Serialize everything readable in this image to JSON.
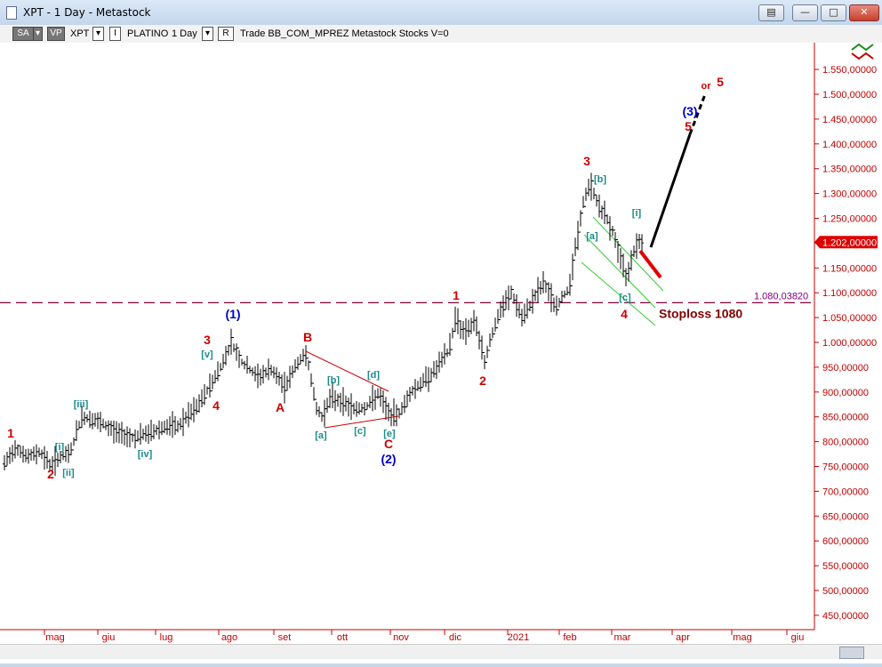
{
  "window": {
    "title": "XPT - 1 Day - Metastock"
  },
  "toolbar": {
    "sa": "SA",
    "vp": "VP",
    "symbol": "XPT",
    "name": "PLATINO",
    "period": "1 Day",
    "r_btn": "R",
    "info": "Trade  BB_COM_MPREZ  Metastock  Stocks  V=0"
  },
  "chart_data": {
    "type": "candlestick",
    "title": "XPT - 1 Day",
    "x_tick_labels": [
      "mag",
      "giu",
      "lug",
      "ago",
      "set",
      "ott",
      "nov",
      "dic",
      "2021",
      "feb",
      "mar",
      "apr",
      "mag",
      "giu"
    ],
    "y_tick_labels": [
      "450,00000",
      "500,00000",
      "550,00000",
      "600,00000",
      "650,00000",
      "700,00000",
      "750,00000",
      "800,00000",
      "850,00000",
      "900,00000",
      "950,00000",
      "1.000,00000",
      "1.050,00000",
      "1.100,00000",
      "1.150,00000",
      "1.200,00000",
      "1.250,00000",
      "1.300,00000",
      "1.350,00000",
      "1.400,00000",
      "1.450,00000",
      "1.500,00000",
      "1.550,00000"
    ],
    "ylim": [
      420,
      1600
    ],
    "current_price": 1202,
    "current_price_label": "1.202,00000",
    "stoploss_level": 1080.0382,
    "stoploss_level_label": "1.080,03820",
    "stoploss_text": "Stoploss 1080",
    "projection_text_or": "or",
    "wave_labels": {
      "red": [
        "1",
        "2",
        "3",
        "4",
        "A",
        "B",
        "C",
        "1",
        "2",
        "3",
        "4",
        "5",
        "5"
      ],
      "blue": [
        "(1)",
        "(2)",
        "(3)"
      ],
      "teal": [
        "[i]",
        "[ii]",
        "[iii]",
        "[iv]",
        "[v]",
        "[a]",
        "[b]",
        "[c]",
        "[d]",
        "[e]",
        "[a]",
        "[b]",
        "[c]",
        "[i]"
      ]
    },
    "colors": {
      "price": "#000000",
      "axis": "#c00000",
      "wave_red": "#cc0000",
      "wave_blue": "#0000cc",
      "wave_teal": "#1a8a8a",
      "stoploss_line": "#800040",
      "channel": "#33cc33",
      "projection_up": "#000000",
      "projection_down": "#e00000"
    },
    "grid": false
  }
}
